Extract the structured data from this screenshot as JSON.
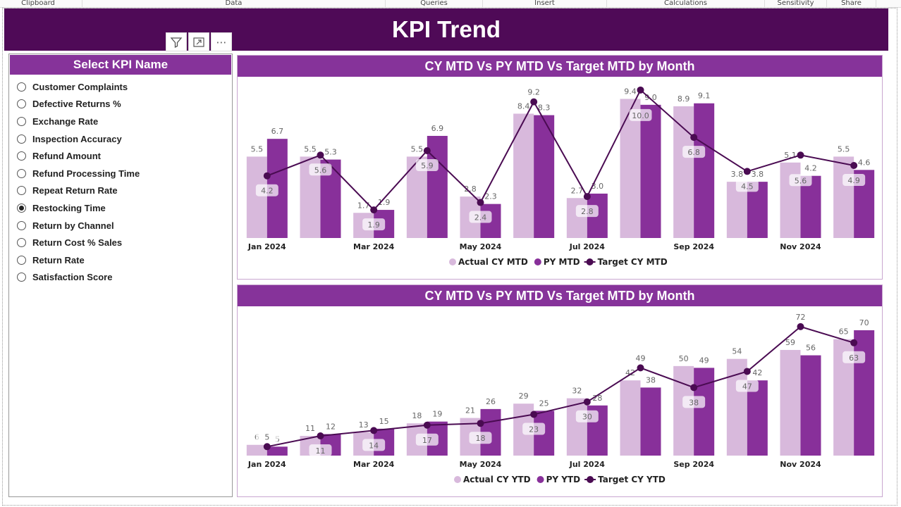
{
  "ribbon": [
    "Clipboard",
    "Data",
    "Queries",
    "Insert",
    "Calculations",
    "Sensitivity",
    "Share"
  ],
  "title": "KPI Trend",
  "slicer": {
    "title": "Select KPI Name",
    "selected": "Restocking Time",
    "items": [
      "Customer Complaints",
      "Defective Returns %",
      "Exchange Rate",
      "Inspection Accuracy",
      "Refund Amount",
      "Refund Processing Time",
      "Repeat Return Rate",
      "Restocking Time",
      "Return by Channel",
      "Return Cost % Sales",
      "Return Rate",
      "Satisfaction Score"
    ]
  },
  "colors": {
    "banner": "#4f0a57",
    "header": "#86339a",
    "actual": "#d8b9dc",
    "py": "#88309a",
    "target": "#4a0b52"
  },
  "chart_data": [
    {
      "type": "bar",
      "title": "CY MTD Vs PY MTD Vs Target MTD by Month",
      "categories": [
        "Jan 2024",
        "Feb 2024",
        "Mar 2024",
        "Apr 2024",
        "May 2024",
        "Jun 2024",
        "Jul 2024",
        "Aug 2024",
        "Sep 2024",
        "Oct 2024",
        "Nov 2024",
        "Dec 2024"
      ],
      "tick_labels": [
        "Jan 2024",
        "",
        "Mar 2024",
        "",
        "May 2024",
        "",
        "Jul 2024",
        "",
        "Sep 2024",
        "",
        "Nov 2024",
        ""
      ],
      "decimals": 1,
      "ylim": [
        0,
        10.8
      ],
      "legend_position": "bottom",
      "series": [
        {
          "name": "Actual CY MTD",
          "kind": "bar",
          "values": [
            5.5,
            5.5,
            1.7,
            5.5,
            2.8,
            8.4,
            2.7,
            9.4,
            8.9,
            3.8,
            5.1,
            5.5
          ]
        },
        {
          "name": "PY MTD",
          "kind": "bar",
          "values": [
            6.7,
            5.3,
            1.9,
            6.9,
            2.3,
            8.3,
            3.0,
            9.0,
            9.1,
            3.8,
            4.2,
            4.6
          ]
        },
        {
          "name": "Target CY MTD",
          "kind": "line",
          "values": [
            4.2,
            5.6,
            1.9,
            5.9,
            2.4,
            9.2,
            2.8,
            10.0,
            6.8,
            4.5,
            5.6,
            4.9
          ]
        }
      ]
    },
    {
      "type": "bar",
      "title": "CY MTD Vs PY MTD Vs Target MTD by Month",
      "categories": [
        "Jan 2024",
        "Feb 2024",
        "Mar 2024",
        "Apr 2024",
        "May 2024",
        "Jun 2024",
        "Jul 2024",
        "Aug 2024",
        "Sep 2024",
        "Oct 2024",
        "Nov 2024",
        "Dec 2024"
      ],
      "tick_labels": [
        "Jan 2024",
        "",
        "Mar 2024",
        "",
        "May 2024",
        "",
        "Jul 2024",
        "",
        "Sep 2024",
        "",
        "Nov 2024",
        ""
      ],
      "decimals": 0,
      "ylim": [
        0,
        81
      ],
      "legend_position": "bottom",
      "series": [
        {
          "name": "Actual CY YTD",
          "kind": "bar",
          "values": [
            6,
            11,
            13,
            18,
            21,
            29,
            32,
            42,
            50,
            54,
            59,
            65
          ]
        },
        {
          "name": "PY YTD",
          "kind": "bar",
          "values": [
            5,
            12,
            15,
            19,
            26,
            25,
            28,
            38,
            49,
            42,
            56,
            70
          ]
        },
        {
          "name": "Target CY YTD",
          "kind": "line",
          "values": [
            5,
            11,
            14,
            17,
            18,
            23,
            30,
            49,
            38,
            47,
            72,
            63
          ]
        }
      ]
    }
  ]
}
